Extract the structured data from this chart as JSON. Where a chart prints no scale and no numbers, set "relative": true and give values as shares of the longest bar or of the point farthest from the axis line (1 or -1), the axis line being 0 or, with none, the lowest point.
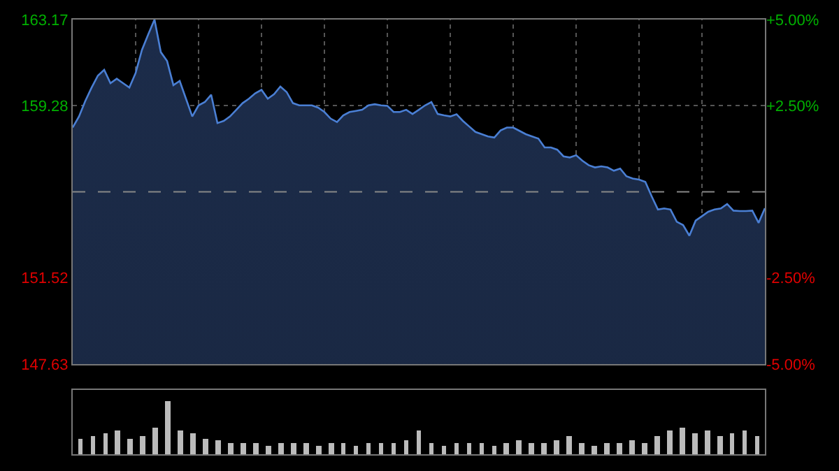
{
  "chart_data": [
    {
      "type": "area",
      "categories": [
        null,
        null,
        null,
        null,
        null,
        null,
        null,
        null,
        null,
        null,
        null,
        null,
        null,
        null,
        null,
        null,
        null,
        null,
        null,
        null,
        null,
        null,
        null,
        null,
        null,
        null,
        null,
        null,
        null,
        null,
        null,
        null,
        null,
        null,
        null,
        null,
        null,
        null,
        null,
        null,
        null,
        null,
        null,
        null,
        null,
        null,
        null,
        null,
        null,
        null,
        null,
        null,
        null,
        null,
        null,
        null,
        null,
        null,
        null,
        null,
        null,
        null,
        null,
        null,
        null,
        null,
        null,
        null,
        null,
        null,
        null,
        null,
        null,
        null,
        null,
        null,
        null,
        null,
        null,
        null,
        null,
        null,
        null,
        null,
        null,
        null,
        null,
        null,
        null,
        null,
        null,
        null,
        null,
        null,
        null,
        null,
        null,
        null,
        null,
        null,
        null,
        null,
        null,
        null,
        null,
        null,
        null,
        null,
        null,
        null,
        null
      ],
      "series": [
        {
          "color": "#4a7fd4",
          "values": [
            158.3,
            158.8,
            159.5,
            160.1,
            160.64,
            160.9,
            160.3,
            160.5,
            160.3,
            160.1,
            160.76,
            161.8,
            162.5,
            163.17,
            161.7,
            161.3,
            160.21,
            160.4,
            159.6,
            158.8,
            159.3,
            159.45,
            159.78,
            158.5,
            158.6,
            158.8,
            159.1,
            159.4,
            159.6,
            159.84,
            160.0,
            159.6,
            159.8,
            160.15,
            159.9,
            159.4,
            159.3,
            159.3,
            159.3,
            159.2,
            159.0,
            158.7,
            158.55,
            158.85,
            159.0,
            159.05,
            159.1,
            159.3,
            159.35,
            159.3,
            159.28,
            159.0,
            159.0,
            159.1,
            158.91,
            159.1,
            159.3,
            159.45,
            158.91,
            158.85,
            158.8,
            158.9,
            158.6,
            158.35,
            158.1,
            158.0,
            157.9,
            157.85,
            158.17,
            158.3,
            158.3,
            158.15,
            158.0,
            157.9,
            157.8,
            157.4,
            157.4,
            157.3,
            157.0,
            156.95,
            157.05,
            156.8,
            156.6,
            156.5,
            156.55,
            156.5,
            156.35,
            156.45,
            156.1,
            156.0,
            155.95,
            155.85,
            155.2,
            154.6,
            154.65,
            154.6,
            154.05,
            153.9,
            153.42,
            154.1,
            154.3,
            154.5,
            154.6,
            154.65,
            154.85,
            154.55,
            154.53,
            154.53,
            154.55,
            154.0,
            154.66
          ]
        }
      ],
      "ylim": [
        147.63,
        163.17
      ],
      "yticks": [
        147.63,
        151.52,
        159.28,
        163.17
      ],
      "y2lim": [
        -5,
        5
      ],
      "y2ticks": [
        {
          "value": -5,
          "label": "-5.00%"
        },
        {
          "value": -2.5,
          "label": "-2.50%"
        },
        {
          "value": 2.5,
          "label": "+2.50%"
        },
        {
          "value": 5,
          "label": "+5.00%"
        }
      ],
      "ref_lines": [
        {
          "axis": "y",
          "value": 155.4,
          "line_style": "dashed"
        }
      ],
      "grid": true,
      "marker": "none",
      "line_style": "solid"
    },
    {
      "type": "bar",
      "relative": true,
      "color": "#bbbbbb",
      "categories": [
        null,
        null,
        null,
        null,
        null,
        null,
        null,
        null,
        null,
        null,
        null,
        null,
        null,
        null,
        null,
        null,
        null,
        null,
        null,
        null,
        null,
        null,
        null,
        null,
        null,
        null,
        null,
        null,
        null,
        null,
        null,
        null,
        null,
        null,
        null,
        null,
        null,
        null,
        null,
        null,
        null,
        null,
        null,
        null,
        null,
        null,
        null,
        null,
        null,
        null,
        null,
        null,
        null,
        null,
        null
      ],
      "values": [
        0.3,
        0.35,
        0.4,
        0.45,
        0.3,
        0.35,
        0.5,
        1.0,
        0.45,
        0.4,
        0.3,
        0.25,
        0.2,
        0.2,
        0.2,
        0.15,
        0.2,
        0.2,
        0.2,
        0.15,
        0.2,
        0.2,
        0.15,
        0.2,
        0.2,
        0.2,
        0.25,
        0.45,
        0.2,
        0.15,
        0.2,
        0.2,
        0.2,
        0.15,
        0.2,
        0.25,
        0.2,
        0.2,
        0.25,
        0.35,
        0.2,
        0.15,
        0.2,
        0.2,
        0.25,
        0.2,
        0.35,
        0.45,
        0.5,
        0.4,
        0.45,
        0.35,
        0.4,
        0.45,
        0.35
      ]
    }
  ]
}
